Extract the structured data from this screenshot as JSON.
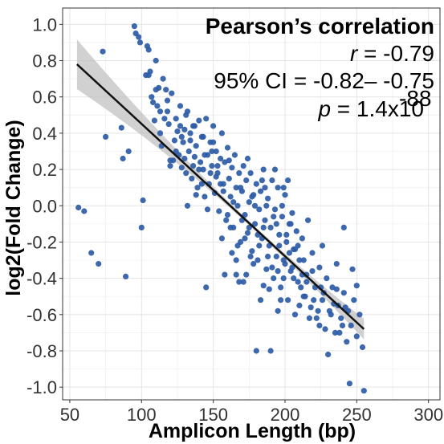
{
  "chart_data": {
    "type": "scatter",
    "xlabel": "Amplicon Length (bp)",
    "ylabel": "log2(Fold Change)",
    "xlim": [
      45,
      308
    ],
    "ylim": [
      -1.07,
      1.09
    ],
    "xticks": [
      50,
      100,
      150,
      200,
      250,
      300
    ],
    "yticks": [
      -1.0,
      -0.8,
      -0.6,
      -0.4,
      -0.2,
      0.0,
      0.2,
      0.4,
      0.6,
      0.8,
      1.0
    ],
    "xtick_labels": [
      "50",
      "100",
      "150",
      "200",
      "250",
      "300"
    ],
    "ytick_labels": [
      "-1.0",
      "-0.8",
      "-0.6",
      "-0.4",
      "-0.2",
      "0.0",
      "0.2",
      "0.4",
      "0.6",
      "0.8",
      "1.0"
    ],
    "grid": true,
    "point_color": "#2C5BA6",
    "fit_line": {
      "x": [
        55,
        255
      ],
      "y": [
        0.78,
        -0.68
      ],
      "color": "#111111",
      "band_color": "#BEBEBE"
    },
    "annotation": {
      "title": "Pearson’s correlation",
      "r_symbol": "r",
      "r_value": "= -0.79",
      "ci": "95% CI = -0.82– -0.75",
      "p_symbol": "p",
      "p_value": "= 1.4x10",
      "p_exponent": "-88"
    },
    "points": [
      [
        56,
        -0.01
      ],
      [
        60,
        -0.03
      ],
      [
        65,
        -0.26
      ],
      [
        70,
        -0.32
      ],
      [
        73,
        0.85
      ],
      [
        75,
        0.38
      ],
      [
        86,
        0.43
      ],
      [
        87,
        0.26
      ],
      [
        89,
        -0.39
      ],
      [
        91,
        0.3
      ],
      [
        95,
        0.99
      ],
      [
        96,
        0.95
      ],
      [
        98,
        0.93
      ],
      [
        99,
        0.9
      ],
      [
        100,
        -0.12
      ],
      [
        101,
        0.03
      ],
      [
        103,
        0.72
      ],
      [
        104,
        0.88
      ],
      [
        105,
        0.86
      ],
      [
        106,
        0.74
      ],
      [
        107,
        0.6
      ],
      [
        108,
        0.57
      ],
      [
        109,
        0.47
      ],
      [
        110,
        0.64
      ],
      [
        111,
        0.55
      ],
      [
        112,
        0.65
      ],
      [
        113,
        0.52
      ],
      [
        114,
        0.33
      ],
      [
        115,
        0.7
      ],
      [
        116,
        0.48
      ],
      [
        117,
        0.64
      ],
      [
        118,
        0.58
      ],
      [
        119,
        0.45
      ],
      [
        120,
        0.22
      ],
      [
        121,
        0.62
      ],
      [
        122,
        0.25
      ],
      [
        123,
        0.36
      ],
      [
        124,
        0.3
      ],
      [
        125,
        0.41
      ],
      [
        126,
        0.28
      ],
      [
        127,
        0.55
      ],
      [
        128,
        0.21
      ],
      [
        129,
        0.35
      ],
      [
        130,
        0.26
      ],
      [
        131,
        0.18
      ],
      [
        132,
        0.52
      ],
      [
        133,
        0.3
      ],
      [
        134,
        0.4
      ],
      [
        135,
        0.15
      ],
      [
        136,
        0.44
      ],
      [
        137,
        0.27
      ],
      [
        138,
        0.33
      ],
      [
        139,
        0.1
      ],
      [
        140,
        0.47
      ],
      [
        141,
        0.24
      ],
      [
        142,
        0.38
      ],
      [
        143,
        0.2
      ],
      [
        144,
        0.05
      ],
      [
        145,
        0.48
      ],
      [
        146,
        0.28
      ],
      [
        147,
        0.12
      ],
      [
        148,
        0.35
      ],
      [
        149,
        0.22
      ],
      [
        150,
        0.44
      ],
      [
        151,
        0.07
      ],
      [
        152,
        0.3
      ],
      [
        153,
        0.18
      ],
      [
        154,
        -0.03
      ],
      [
        155,
        0.26
      ],
      [
        156,
        0.4
      ],
      [
        157,
        0.12
      ],
      [
        158,
        0.24
      ],
      [
        159,
        -0.08
      ],
      [
        160,
        0.32
      ],
      [
        161,
        0.15
      ],
      [
        162,
        0.05
      ],
      [
        163,
        0.21
      ],
      [
        164,
        -0.12
      ],
      [
        165,
        0.28
      ],
      [
        166,
        0.1
      ],
      [
        167,
        0.0
      ],
      [
        168,
        0.18
      ],
      [
        169,
        -0.2
      ],
      [
        170,
        0.08
      ],
      [
        171,
        0.22
      ],
      [
        172,
        -0.05
      ],
      [
        173,
        0.14
      ],
      [
        174,
        -0.15
      ],
      [
        175,
        0.02
      ],
      [
        176,
        0.18
      ],
      [
        177,
        -0.25
      ],
      [
        178,
        0.06
      ],
      [
        179,
        -0.1
      ],
      [
        180,
        0.12
      ],
      [
        181,
        -0.3
      ],
      [
        182,
        -0.02
      ],
      [
        183,
        0.08
      ],
      [
        184,
        -0.18
      ],
      [
        185,
        0.2
      ],
      [
        186,
        -0.08
      ],
      [
        187,
        -0.35
      ],
      [
        188,
        0.04
      ],
      [
        189,
        -0.22
      ],
      [
        190,
        -0.12
      ],
      [
        191,
        0.14
      ],
      [
        192,
        -0.4
      ],
      [
        193,
        -0.02
      ],
      [
        194,
        -0.28
      ],
      [
        195,
        0.1
      ],
      [
        196,
        -0.16
      ],
      [
        197,
        -0.45
      ],
      [
        198,
        -0.06
      ],
      [
        199,
        -0.3
      ],
      [
        200,
        0.06
      ],
      [
        201,
        -0.2
      ],
      [
        202,
        -0.52
      ],
      [
        203,
        -0.1
      ],
      [
        204,
        -0.36
      ],
      [
        205,
        -0.04
      ],
      [
        206,
        -0.24
      ],
      [
        207,
        -0.6
      ],
      [
        208,
        -0.14
      ],
      [
        209,
        -0.42
      ],
      [
        210,
        -0.3
      ],
      [
        212,
        -0.18
      ],
      [
        213,
        -0.5
      ],
      [
        215,
        -0.38
      ],
      [
        216,
        -0.08
      ],
      [
        218,
        -0.56
      ],
      [
        219,
        -0.26
      ],
      [
        221,
        -0.45
      ],
      [
        222,
        -0.62
      ],
      [
        224,
        -0.34
      ],
      [
        226,
        -0.52
      ],
      [
        228,
        -0.68
      ],
      [
        229,
        -0.4
      ],
      [
        231,
        -0.58
      ],
      [
        233,
        -0.45
      ],
      [
        235,
        -0.7
      ],
      [
        237,
        -0.55
      ],
      [
        239,
        -0.62
      ],
      [
        241,
        -0.48
      ],
      [
        243,
        -0.75
      ],
      [
        244,
        -0.58
      ],
      [
        246,
        -0.66
      ],
      [
        248,
        -0.52
      ],
      [
        250,
        -0.72
      ],
      [
        252,
        -0.6
      ],
      [
        254,
        -0.78
      ],
      [
        230,
        -0.82
      ],
      [
        245,
        -0.98
      ],
      [
        255,
        -1.02
      ],
      [
        238,
        -0.7
      ],
      [
        224,
        -0.66
      ],
      [
        180,
        -0.8
      ],
      [
        190,
        -0.8
      ],
      [
        213,
        -0.3
      ],
      [
        226,
        -0.22
      ],
      [
        241,
        -0.12
      ],
      [
        236,
        -0.32
      ],
      [
        247,
        -0.35
      ],
      [
        204,
        -0.1
      ],
      [
        210,
        -0.55
      ],
      [
        158,
        -0.38
      ],
      [
        145,
        -0.45
      ],
      [
        132,
        0.0
      ],
      [
        120,
        0.25
      ],
      [
        128,
        0.38
      ],
      [
        163,
        -0.26
      ],
      [
        171,
        -0.42
      ],
      [
        177,
        0.05
      ],
      [
        183,
        -0.52
      ],
      [
        189,
        -0.46
      ],
      [
        195,
        -0.58
      ],
      [
        199,
        -0.4
      ],
      [
        202,
        0.14
      ],
      [
        156,
        -0.18
      ],
      [
        166,
        -0.3
      ],
      [
        174,
        0.26
      ],
      [
        187,
        0.0
      ],
      [
        193,
        0.2
      ],
      [
        197,
        -0.52
      ],
      [
        168,
        -0.42
      ],
      [
        160,
        -0.05
      ],
      [
        150,
        0.35
      ],
      [
        142,
        0.12
      ],
      [
        182,
        -0.22
      ],
      [
        178,
        -0.32
      ],
      [
        185,
        -0.44
      ],
      [
        191,
        -0.34
      ],
      [
        196,
        -0.22
      ],
      [
        172,
        -0.18
      ],
      [
        164,
        0.02
      ],
      [
        152,
        0.16
      ],
      [
        146,
        -0.02
      ],
      [
        138,
        0.06
      ],
      [
        136,
        0.22
      ],
      [
        200,
        -0.32
      ],
      [
        206,
        -0.4
      ],
      [
        211,
        -0.45
      ],
      [
        215,
        -0.42
      ],
      [
        220,
        -0.52
      ],
      [
        225,
        -0.45
      ],
      [
        232,
        -0.6
      ],
      [
        236,
        -0.46
      ],
      [
        242,
        -0.56
      ],
      [
        250,
        -0.44
      ],
      [
        217,
        -0.62
      ],
      [
        203,
        -0.26
      ],
      [
        194,
        -0.1
      ],
      [
        186,
        0.1
      ],
      [
        179,
        0.0
      ],
      [
        175,
        -0.12
      ],
      [
        169,
        0.1
      ],
      [
        161,
        0.25
      ],
      [
        155,
        0.12
      ],
      [
        149,
        0.3
      ],
      [
        143,
        0.38
      ],
      [
        137,
        0.44
      ],
      [
        131,
        0.5
      ],
      [
        127,
        0.44
      ],
      [
        124,
        0.48
      ],
      [
        118,
        0.52
      ],
      [
        113,
        0.4
      ],
      [
        110,
        0.8
      ],
      [
        105,
        0.72
      ],
      [
        188,
        -0.28
      ],
      [
        192,
        -0.06
      ],
      [
        198,
        0.0
      ],
      [
        201,
        -0.16
      ],
      [
        205,
        -0.34
      ],
      [
        209,
        -0.22
      ],
      [
        214,
        -0.5
      ],
      [
        219,
        -0.36
      ],
      [
        223,
        -0.58
      ],
      [
        227,
        -0.48
      ],
      [
        234,
        -0.54
      ],
      [
        240,
        -0.66
      ],
      [
        176,
        -0.28
      ],
      [
        170,
        -0.08
      ],
      [
        162,
        -0.12
      ],
      [
        157,
        0.08
      ],
      [
        153,
        0.22
      ],
      [
        148,
        0.18
      ],
      [
        144,
        0.28
      ],
      [
        140,
        0.2
      ],
      [
        134,
        0.36
      ],
      [
        130,
        0.42
      ],
      [
        185,
        -0.12
      ],
      [
        181,
        -0.16
      ],
      [
        173,
        -0.38
      ],
      [
        167,
        -0.22
      ],
      [
        195,
        -0.36
      ],
      [
        199,
        0.1
      ],
      [
        207,
        -0.24
      ],
      [
        212,
        -0.38
      ],
      [
        184,
        0.14
      ],
      [
        166,
        -0.38
      ]
    ]
  }
}
